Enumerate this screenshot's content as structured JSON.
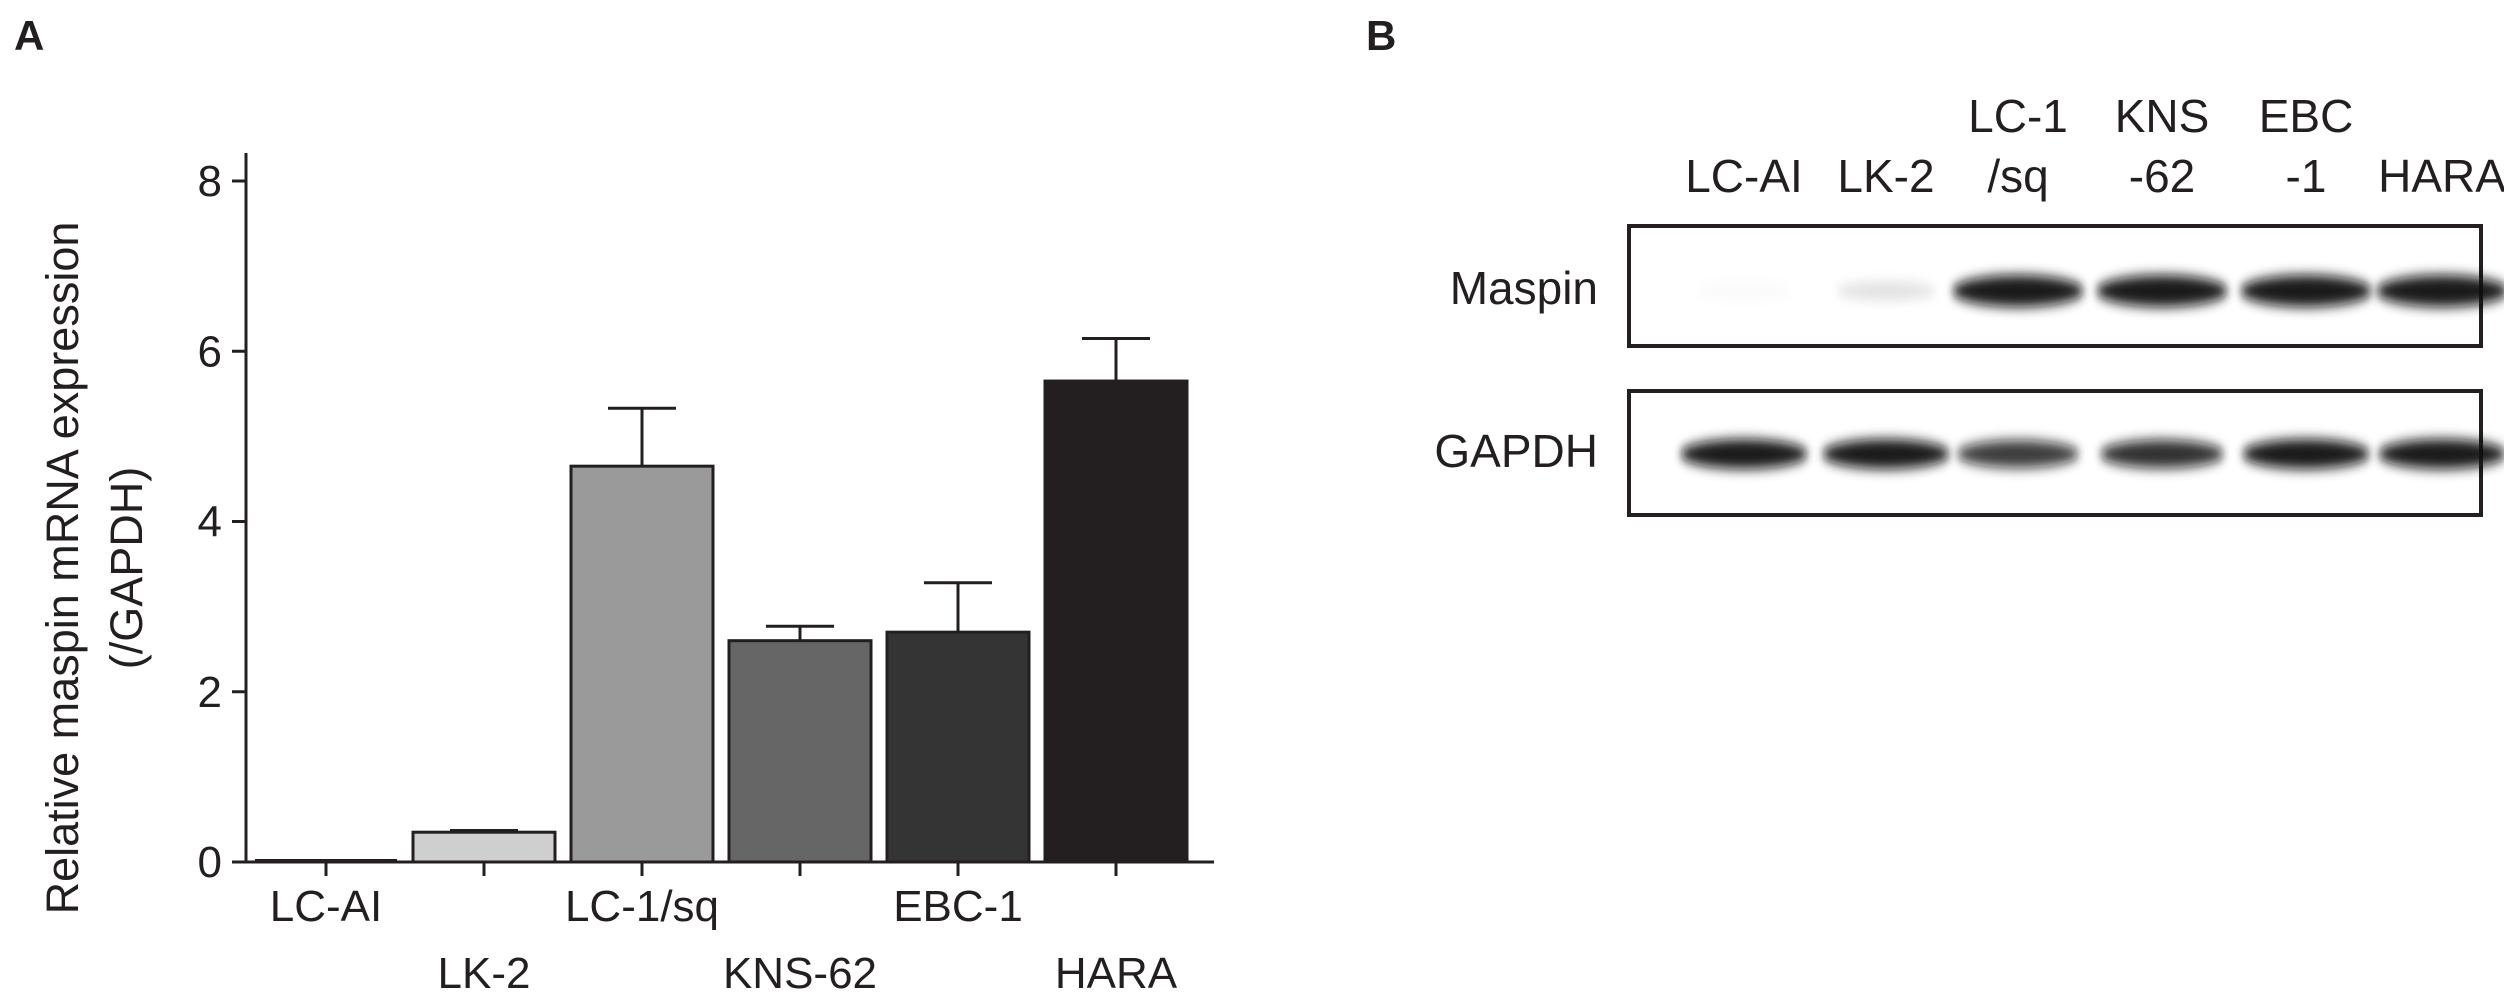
{
  "panels": {
    "a_label": "A",
    "b_label": "B"
  },
  "chart_data": {
    "type": "bar",
    "title": "",
    "xlabel": "",
    "ylabel": "Relative maspin mRNA expression",
    "ylabel_unit": "(/GAPDH)",
    "categories": [
      "LC-AI",
      "LK-2",
      "LC-1/sq",
      "KNS-62",
      "EBC-1",
      "HARA"
    ],
    "values": [
      0.0,
      0.35,
      4.65,
      2.6,
      2.7,
      5.65
    ],
    "errors": [
      0.0,
      0.02,
      0.68,
      0.17,
      0.58,
      0.5
    ],
    "bar_colors": [
      "#ffffff",
      "#cfcfcf",
      "#9a9a9a",
      "#666666",
      "#343434",
      "#231f20"
    ],
    "ylim": [
      0,
      8
    ],
    "yticks": [
      0,
      2,
      4,
      6,
      8
    ],
    "grid": false
  },
  "blot": {
    "lanes": [
      {
        "line1": "LC-AI",
        "line2": ""
      },
      {
        "line1": "LK-2",
        "line2": ""
      },
      {
        "line1": "LC-1",
        "line2": "/sq"
      },
      {
        "line1": "KNS",
        "line2": "-62"
      },
      {
        "line1": "EBC",
        "line2": "-1"
      },
      {
        "line1": "HARA",
        "line2": ""
      }
    ],
    "rows": [
      {
        "label": "Maspin",
        "intensity": [
          0.02,
          0.12,
          1.0,
          1.0,
          1.0,
          1.0
        ]
      },
      {
        "label": "GAPDH",
        "intensity": [
          1.0,
          1.0,
          0.85,
          0.9,
          1.0,
          1.0
        ]
      }
    ]
  }
}
